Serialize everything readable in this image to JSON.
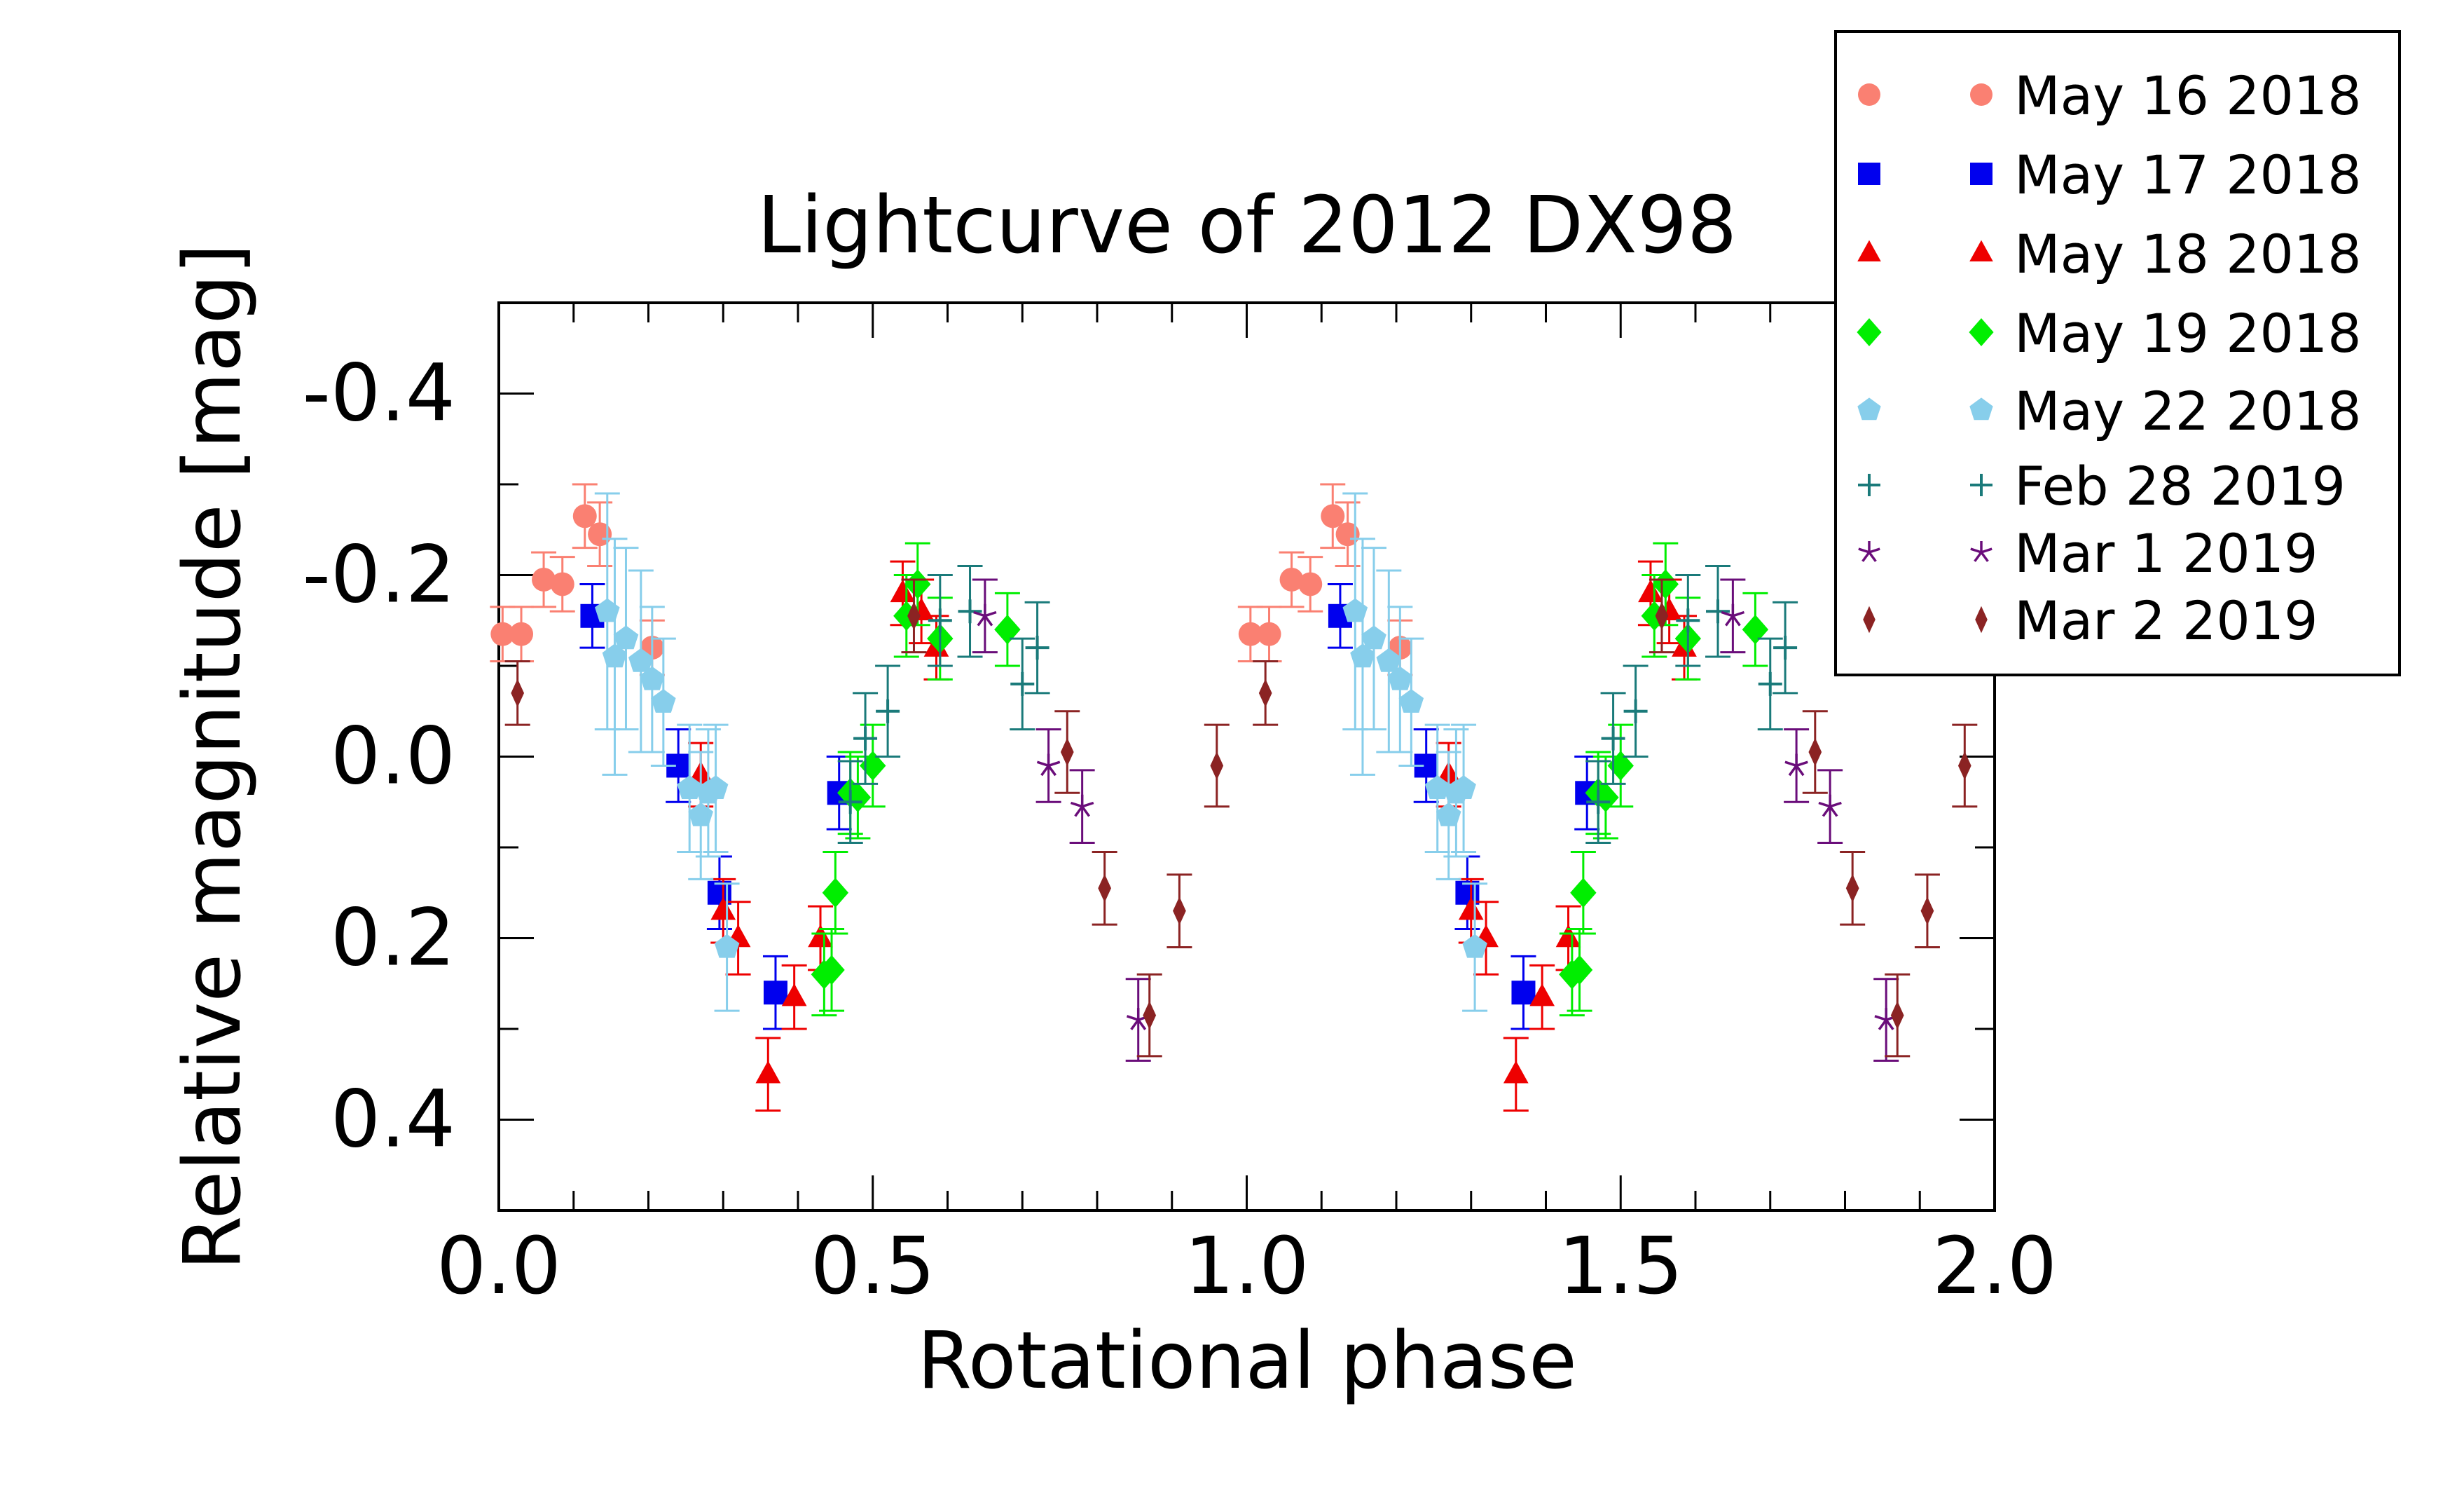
{
  "chart_data": {
    "type": "scatter",
    "title": "Lightcurve of 2012 DX98",
    "xlabel": "Rotational phase",
    "ylabel": "Relative magnitude [mag]",
    "xlim": [
      0.0,
      2.0
    ],
    "ylim": [
      0.5,
      -0.5
    ],
    "y_inverted": true,
    "x_ticks": [
      0.0,
      0.5,
      1.0,
      1.5,
      2.0
    ],
    "x_tick_labels": [
      "0.0",
      "0.5",
      "1.0",
      "1.5",
      "2.0"
    ],
    "y_ticks": [
      -0.4,
      -0.2,
      0.0,
      0.2,
      0.4
    ],
    "y_tick_labels": [
      "-0.4",
      "-0.2",
      "0.0",
      "0.2",
      "0.4"
    ],
    "grid": false,
    "legend_position": "top-right, outside plot",
    "phase_repeat": 1.0,
    "series": [
      {
        "name": "May 16 2018",
        "marker": "circle",
        "color": "#fa8072",
        "points": [
          {
            "x": 0.005,
            "y": -0.135,
            "err": 0.03
          },
          {
            "x": 0.03,
            "y": -0.135,
            "err": 0.03
          },
          {
            "x": 0.06,
            "y": -0.195,
            "err": 0.03
          },
          {
            "x": 0.085,
            "y": -0.19,
            "err": 0.03
          },
          {
            "x": 0.115,
            "y": -0.265,
            "err": 0.035
          },
          {
            "x": 0.135,
            "y": -0.245,
            "err": 0.035
          },
          {
            "x": 0.205,
            "y": -0.12,
            "err": 0.03
          }
        ]
      },
      {
        "name": "May 17 2018",
        "marker": "square",
        "color": "#0000ee",
        "points": [
          {
            "x": 0.125,
            "y": -0.155,
            "err": 0.035
          },
          {
            "x": 0.24,
            "y": 0.01,
            "err": 0.04
          },
          {
            "x": 0.295,
            "y": 0.15,
            "err": 0.04
          },
          {
            "x": 0.37,
            "y": 0.26,
            "err": 0.04
          },
          {
            "x": 0.455,
            "y": 0.04,
            "err": 0.04
          }
        ]
      },
      {
        "name": "May 18 2018",
        "marker": "triangle",
        "color": "#ee0000",
        "points": [
          {
            "x": 0.27,
            "y": 0.02,
            "err": 0.035
          },
          {
            "x": 0.3,
            "y": 0.17,
            "err": 0.035
          },
          {
            "x": 0.32,
            "y": 0.2,
            "err": 0.04
          },
          {
            "x": 0.36,
            "y": 0.35,
            "err": 0.04
          },
          {
            "x": 0.395,
            "y": 0.265,
            "err": 0.035
          },
          {
            "x": 0.43,
            "y": 0.2,
            "err": 0.035
          },
          {
            "x": 0.54,
            "y": -0.18,
            "err": 0.035
          },
          {
            "x": 0.565,
            "y": -0.16,
            "err": 0.035
          },
          {
            "x": 0.585,
            "y": -0.12,
            "err": 0.035
          }
        ]
      },
      {
        "name": "May 19 2018",
        "marker": "diamond",
        "color": "#00ee00",
        "points": [
          {
            "x": 0.435,
            "y": 0.24,
            "err": 0.045
          },
          {
            "x": 0.445,
            "y": 0.235,
            "err": 0.045
          },
          {
            "x": 0.45,
            "y": 0.15,
            "err": 0.045
          },
          {
            "x": 0.47,
            "y": 0.04,
            "err": 0.045
          },
          {
            "x": 0.48,
            "y": 0.045,
            "err": 0.045
          },
          {
            "x": 0.5,
            "y": 0.01,
            "err": 0.045
          },
          {
            "x": 0.545,
            "y": -0.155,
            "err": 0.045
          },
          {
            "x": 0.56,
            "y": -0.19,
            "err": 0.045
          },
          {
            "x": 0.59,
            "y": -0.13,
            "err": 0.045
          },
          {
            "x": 0.68,
            "y": -0.14,
            "err": 0.04
          }
        ]
      },
      {
        "name": "May 22 2018",
        "marker": "pentagon",
        "color": "#87ceeb",
        "points": [
          {
            "x": 0.145,
            "y": -0.16,
            "err": 0.13
          },
          {
            "x": 0.155,
            "y": -0.11,
            "err": 0.13
          },
          {
            "x": 0.17,
            "y": -0.13,
            "err": 0.1
          },
          {
            "x": 0.19,
            "y": -0.105,
            "err": 0.1
          },
          {
            "x": 0.205,
            "y": -0.085,
            "err": 0.08
          },
          {
            "x": 0.22,
            "y": -0.06,
            "err": 0.07
          },
          {
            "x": 0.255,
            "y": 0.035,
            "err": 0.07
          },
          {
            "x": 0.27,
            "y": 0.065,
            "err": 0.07
          },
          {
            "x": 0.28,
            "y": 0.04,
            "err": 0.07
          },
          {
            "x": 0.29,
            "y": 0.035,
            "err": 0.07
          },
          {
            "x": 0.305,
            "y": 0.21,
            "err": 0.07
          }
        ]
      },
      {
        "name": "Feb 28 2019",
        "marker": "plus",
        "color": "#1a7a7a",
        "points": [
          {
            "x": 0.47,
            "y": 0.05,
            "err": 0.045
          },
          {
            "x": 0.49,
            "y": -0.02,
            "err": 0.05
          },
          {
            "x": 0.52,
            "y": -0.05,
            "err": 0.05
          },
          {
            "x": 0.59,
            "y": -0.15,
            "err": 0.05
          },
          {
            "x": 0.63,
            "y": -0.16,
            "err": 0.05
          },
          {
            "x": 0.7,
            "y": -0.08,
            "err": 0.05
          },
          {
            "x": 0.72,
            "y": -0.12,
            "err": 0.05
          }
        ]
      },
      {
        "name": "Mar 1 2019",
        "marker": "star",
        "color": "#6a0d7a",
        "points": [
          {
            "x": 0.65,
            "y": -0.155,
            "err": 0.04
          },
          {
            "x": 0.735,
            "y": 0.01,
            "err": 0.04
          },
          {
            "x": 0.78,
            "y": 0.055,
            "err": 0.04
          },
          {
            "x": 0.855,
            "y": 0.29,
            "err": 0.045
          }
        ]
      },
      {
        "name": "Mar 2 2019",
        "marker": "thin-diamond",
        "color": "#8b2323",
        "points": [
          {
            "x": 0.025,
            "y": -0.07,
            "err": 0.035
          },
          {
            "x": 0.555,
            "y": -0.155,
            "err": 0.04
          },
          {
            "x": 0.76,
            "y": -0.005,
            "err": 0.045
          },
          {
            "x": 0.81,
            "y": 0.145,
            "err": 0.04
          },
          {
            "x": 0.87,
            "y": 0.285,
            "err": 0.045
          },
          {
            "x": 0.91,
            "y": 0.17,
            "err": 0.04
          },
          {
            "x": 0.96,
            "y": 0.01,
            "err": 0.045
          }
        ]
      }
    ]
  }
}
